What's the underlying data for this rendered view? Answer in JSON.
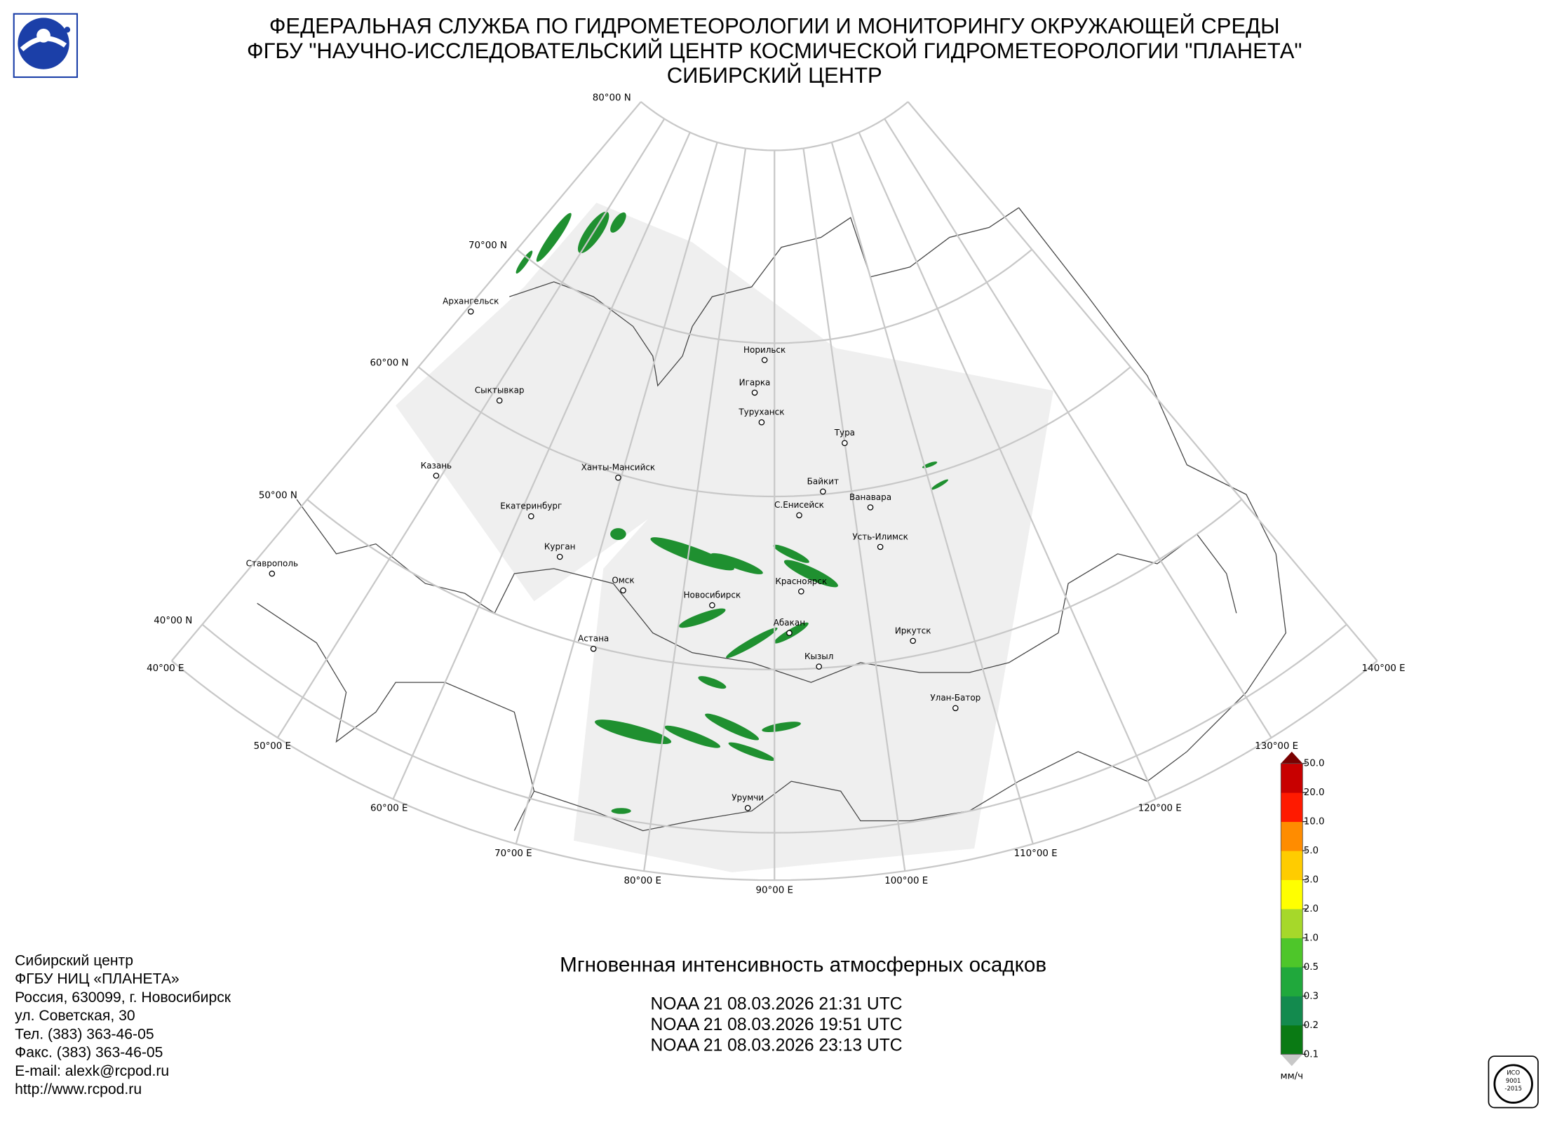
{
  "header": {
    "lines": [
      "ФЕДЕРАЛЬНАЯ СЛУЖБА ПО ГИДРОМЕТЕОРОЛОГИИ И МОНИТОРИНГУ ОКРУЖАЮЩЕЙ СРЕДЫ",
      "ФГБУ \"НАУЧНО-ИССЛЕДОВАТЕЛЬСКИЙ ЦЕНТР КОСМИЧЕСКОЙ ГИДРОМЕТЕОРОЛОГИИ \"ПЛАНЕТА\"",
      "СИБИРСКИЙ ЦЕНТР"
    ]
  },
  "map": {
    "lat_labels": [
      "80°00 N",
      "70°00 N",
      "60°00 N",
      "50°00 N",
      "40°00 N"
    ],
    "lon_labels": [
      "40°00 E",
      "50°00 E",
      "60°00 E",
      "70°00 E",
      "80°00 E",
      "90°00 E",
      "100°00 E",
      "110°00 E",
      "120°00 E",
      "130°00 E",
      "140°00 E"
    ],
    "cities": [
      "Архангельск",
      "Сыктывкар",
      "Казань",
      "Екатеринбург",
      "Курган",
      "Ставрополь",
      "Ханты-Мансийск",
      "Омск",
      "Новосибирск",
      "Астана",
      "Норильск",
      "Игарка",
      "Туруханск",
      "Тура",
      "Байкит",
      "С.Енисейск",
      "Ванавара",
      "Усть-Илимск",
      "Красноярск",
      "Абакан",
      "Кызыл",
      "Иркутск",
      "Улан-Батор",
      "Урумчи"
    ]
  },
  "legend": {
    "labels": [
      "0.1",
      "0.2",
      "0.3",
      "0.5",
      "1.0",
      "2.0",
      "3.0",
      "5.0",
      "10.0",
      "20.0",
      "50.0"
    ],
    "colors": [
      "#0a7a14",
      "#138a4e",
      "#20a83c",
      "#4ec62a",
      "#a6d82a",
      "#ffff00",
      "#ffcc00",
      "#ff8c00",
      "#ff1a00",
      "#c80000"
    ],
    "over_color": "#7a0000",
    "under_color": "#c8c8c8",
    "unit": "мм/ч"
  },
  "caption": {
    "title": "Мгновенная интенсивность атмосферных осадков",
    "passes": [
      "NOAA 21 08.03.2026  21:31 UTC",
      "NOAA 21 08.03.2026  19:51 UTC",
      "NOAA 21 08.03.2026  23:13 UTC"
    ]
  },
  "contacts": [
    "Сибирский центр",
    "ФГБУ НИЦ «ПЛАНЕТА»",
    "Россия, 630099, г. Новосибирск",
    "ул. Советская, 30",
    "Тел. (383) 363-46-05",
    "Факс. (383) 363-46-05",
    "E-mail: alexk@rcpod.ru",
    "http://www.rcpod.ru"
  ],
  "badge": [
    "ИСО",
    "9001",
    "-2015"
  ]
}
